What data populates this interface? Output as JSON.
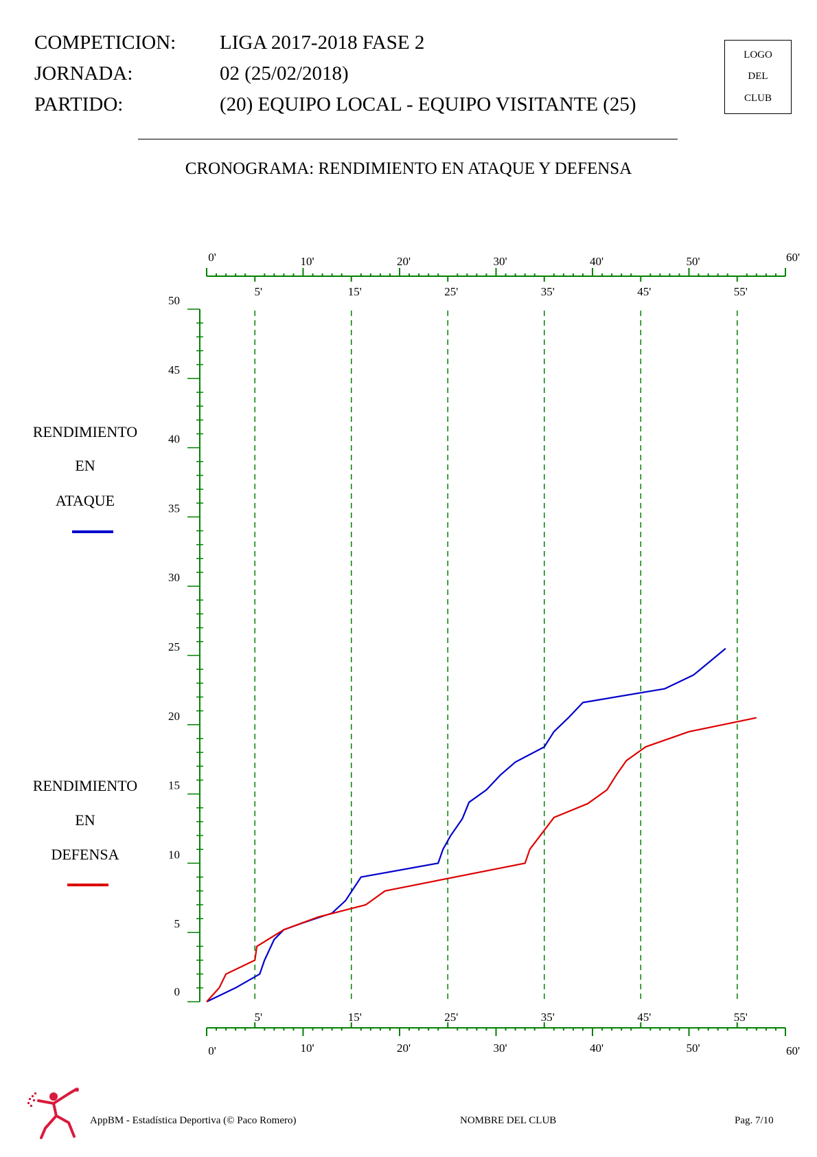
{
  "header": {
    "rows": [
      {
        "label": "COMPETICION:",
        "value": "LIGA 2017-2018 FASE 2"
      },
      {
        "label": "JORNADA:",
        "value": "02 (25/02/2018)"
      },
      {
        "label": "PARTIDO:",
        "value": "(20) EQUIPO LOCAL - EQUIPO VISITANTE (25)"
      }
    ],
    "logo_lines": [
      "LOGO",
      "DEL",
      "CLUB"
    ]
  },
  "legend": {
    "attack": {
      "lines": [
        "RENDIMIENTO",
        "EN",
        "ATAQUE"
      ],
      "color": "#0000cc"
    },
    "defense": {
      "lines": [
        "RENDIMIENTO",
        "EN",
        "DEFENSA"
      ],
      "color": "#dd0000"
    }
  },
  "chart_data": {
    "type": "line",
    "title": "CRONOGRAMA: RENDIMIENTO EN ATAQUE Y DEFENSA",
    "xlim": [
      0,
      60
    ],
    "ylim": [
      0,
      50
    ],
    "x_ticks_even": [
      "0'",
      "10'",
      "20'",
      "30'",
      "40'",
      "50'",
      "60'"
    ],
    "x_ticks_odd": [
      "5'",
      "15'",
      "25'",
      "35'",
      "45'",
      "55'"
    ],
    "y_ticks": [
      "0",
      "5",
      "10",
      "15",
      "20",
      "25",
      "30",
      "35",
      "40",
      "45",
      "50"
    ],
    "grid": "vertical dashed at 5' intervals",
    "grid_color": "#008000",
    "axis_color": "#008000",
    "series": [
      {
        "name": "RENDIMIENTO EN ATAQUE",
        "color": "#0000cc",
        "points": [
          [
            0,
            0
          ],
          [
            3,
            1
          ],
          [
            5.5,
            2
          ],
          [
            6,
            3
          ],
          [
            7,
            4.5
          ],
          [
            8,
            5.2
          ],
          [
            10,
            5.7
          ],
          [
            13,
            6.4
          ],
          [
            14.4,
            7.3
          ],
          [
            16,
            9
          ],
          [
            24,
            10
          ],
          [
            24.5,
            11
          ],
          [
            25.3,
            12
          ],
          [
            26.5,
            13.2
          ],
          [
            27.2,
            14.4
          ],
          [
            29,
            15.3
          ],
          [
            30.5,
            16.4
          ],
          [
            32,
            17.3
          ],
          [
            35,
            18.4
          ],
          [
            36,
            19.5
          ],
          [
            37.5,
            20.5
          ],
          [
            39,
            21.6
          ],
          [
            47.5,
            22.6
          ],
          [
            50.5,
            23.6
          ],
          [
            53.8,
            25.5
          ]
        ]
      },
      {
        "name": "RENDIMIENTO EN DEFENSA",
        "color": "#dd0000",
        "points": [
          [
            0,
            0
          ],
          [
            1.3,
            1
          ],
          [
            2,
            2
          ],
          [
            5,
            3
          ],
          [
            5.2,
            4
          ],
          [
            8,
            5.2
          ],
          [
            11.5,
            6.1
          ],
          [
            16.5,
            7
          ],
          [
            18.5,
            8
          ],
          [
            33,
            10
          ],
          [
            33.5,
            11
          ],
          [
            36,
            13.3
          ],
          [
            39.5,
            14.3
          ],
          [
            41.5,
            15.3
          ],
          [
            42.5,
            16.4
          ],
          [
            43.5,
            17.4
          ],
          [
            45.5,
            18.4
          ],
          [
            50,
            19.5
          ],
          [
            57,
            20.5
          ]
        ]
      }
    ]
  },
  "footer": {
    "left": "AppBM - Estadística Deportiva (© Paco Romero)",
    "center": "NOMBRE DEL CLUB",
    "right": "Pag. 7/10"
  }
}
